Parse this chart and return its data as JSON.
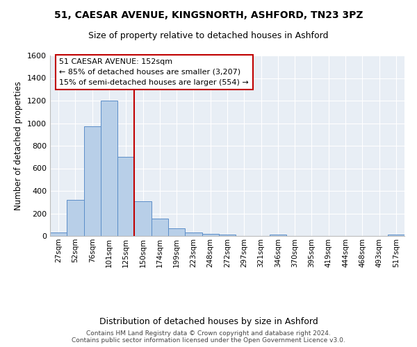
{
  "title1": "51, CAESAR AVENUE, KINGSNORTH, ASHFORD, TN23 3PZ",
  "title2": "Size of property relative to detached houses in Ashford",
  "xlabel": "Distribution of detached houses by size in Ashford",
  "ylabel": "Number of detached properties",
  "bar_values": [
    30,
    320,
    970,
    1200,
    700,
    310,
    155,
    70,
    30,
    20,
    15,
    0,
    0,
    10,
    0,
    0,
    0,
    0,
    0,
    0,
    10
  ],
  "bar_labels": [
    "27sqm",
    "52sqm",
    "76sqm",
    "101sqm",
    "125sqm",
    "150sqm",
    "174sqm",
    "199sqm",
    "223sqm",
    "248sqm",
    "272sqm",
    "297sqm",
    "321sqm",
    "346sqm",
    "370sqm",
    "395sqm",
    "419sqm",
    "444sqm",
    "468sqm",
    "493sqm",
    "517sqm"
  ],
  "bar_color": "#b8cfe8",
  "bar_edge_color": "#5b8dc8",
  "vline_color": "#c00000",
  "vline_x": 4.5,
  "annotation_text": "51 CAESAR AVENUE: 152sqm\n← 85% of detached houses are smaller (3,207)\n15% of semi-detached houses are larger (554) →",
  "annotation_box_color": "#c00000",
  "ylim": [
    0,
    1600
  ],
  "yticks": [
    0,
    200,
    400,
    600,
    800,
    1000,
    1200,
    1400,
    1600
  ],
  "bg_color": "#e8eef5",
  "grid_color": "#ffffff",
  "footer": "Contains HM Land Registry data © Crown copyright and database right 2024.\nContains public sector information licensed under the Open Government Licence v3.0."
}
